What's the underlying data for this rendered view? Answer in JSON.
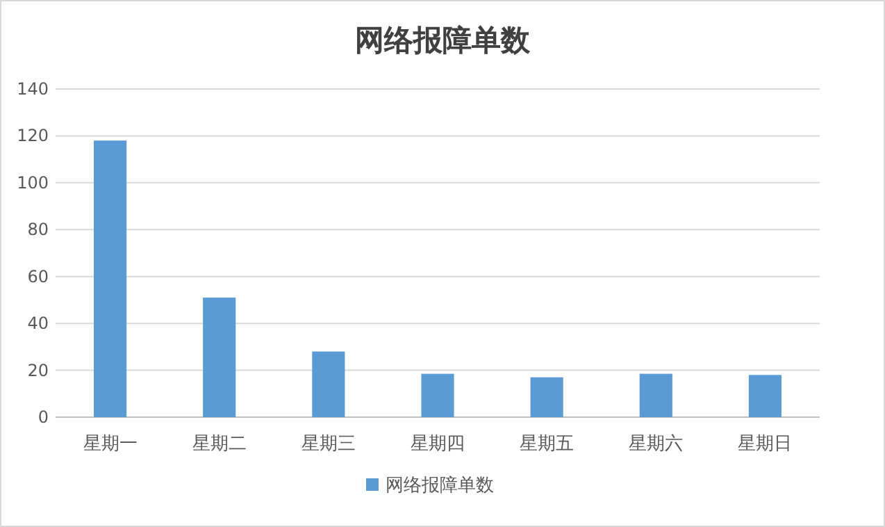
{
  "chart_data": {
    "type": "bar",
    "title": "网络报障单数",
    "categories": [
      "星期一",
      "星期二",
      "星期三",
      "星期四",
      "星期五",
      "星期六",
      "星期日"
    ],
    "series": [
      {
        "name": "网络报障单数",
        "color": "#5b9bd5",
        "values": [
          118,
          51,
          28,
          18.5,
          17,
          18.5,
          18
        ]
      }
    ],
    "ylim": [
      0,
      140
    ],
    "yticks": [
      0,
      20,
      40,
      60,
      80,
      100,
      120,
      140
    ],
    "grid": "y",
    "legend": "bottom"
  }
}
